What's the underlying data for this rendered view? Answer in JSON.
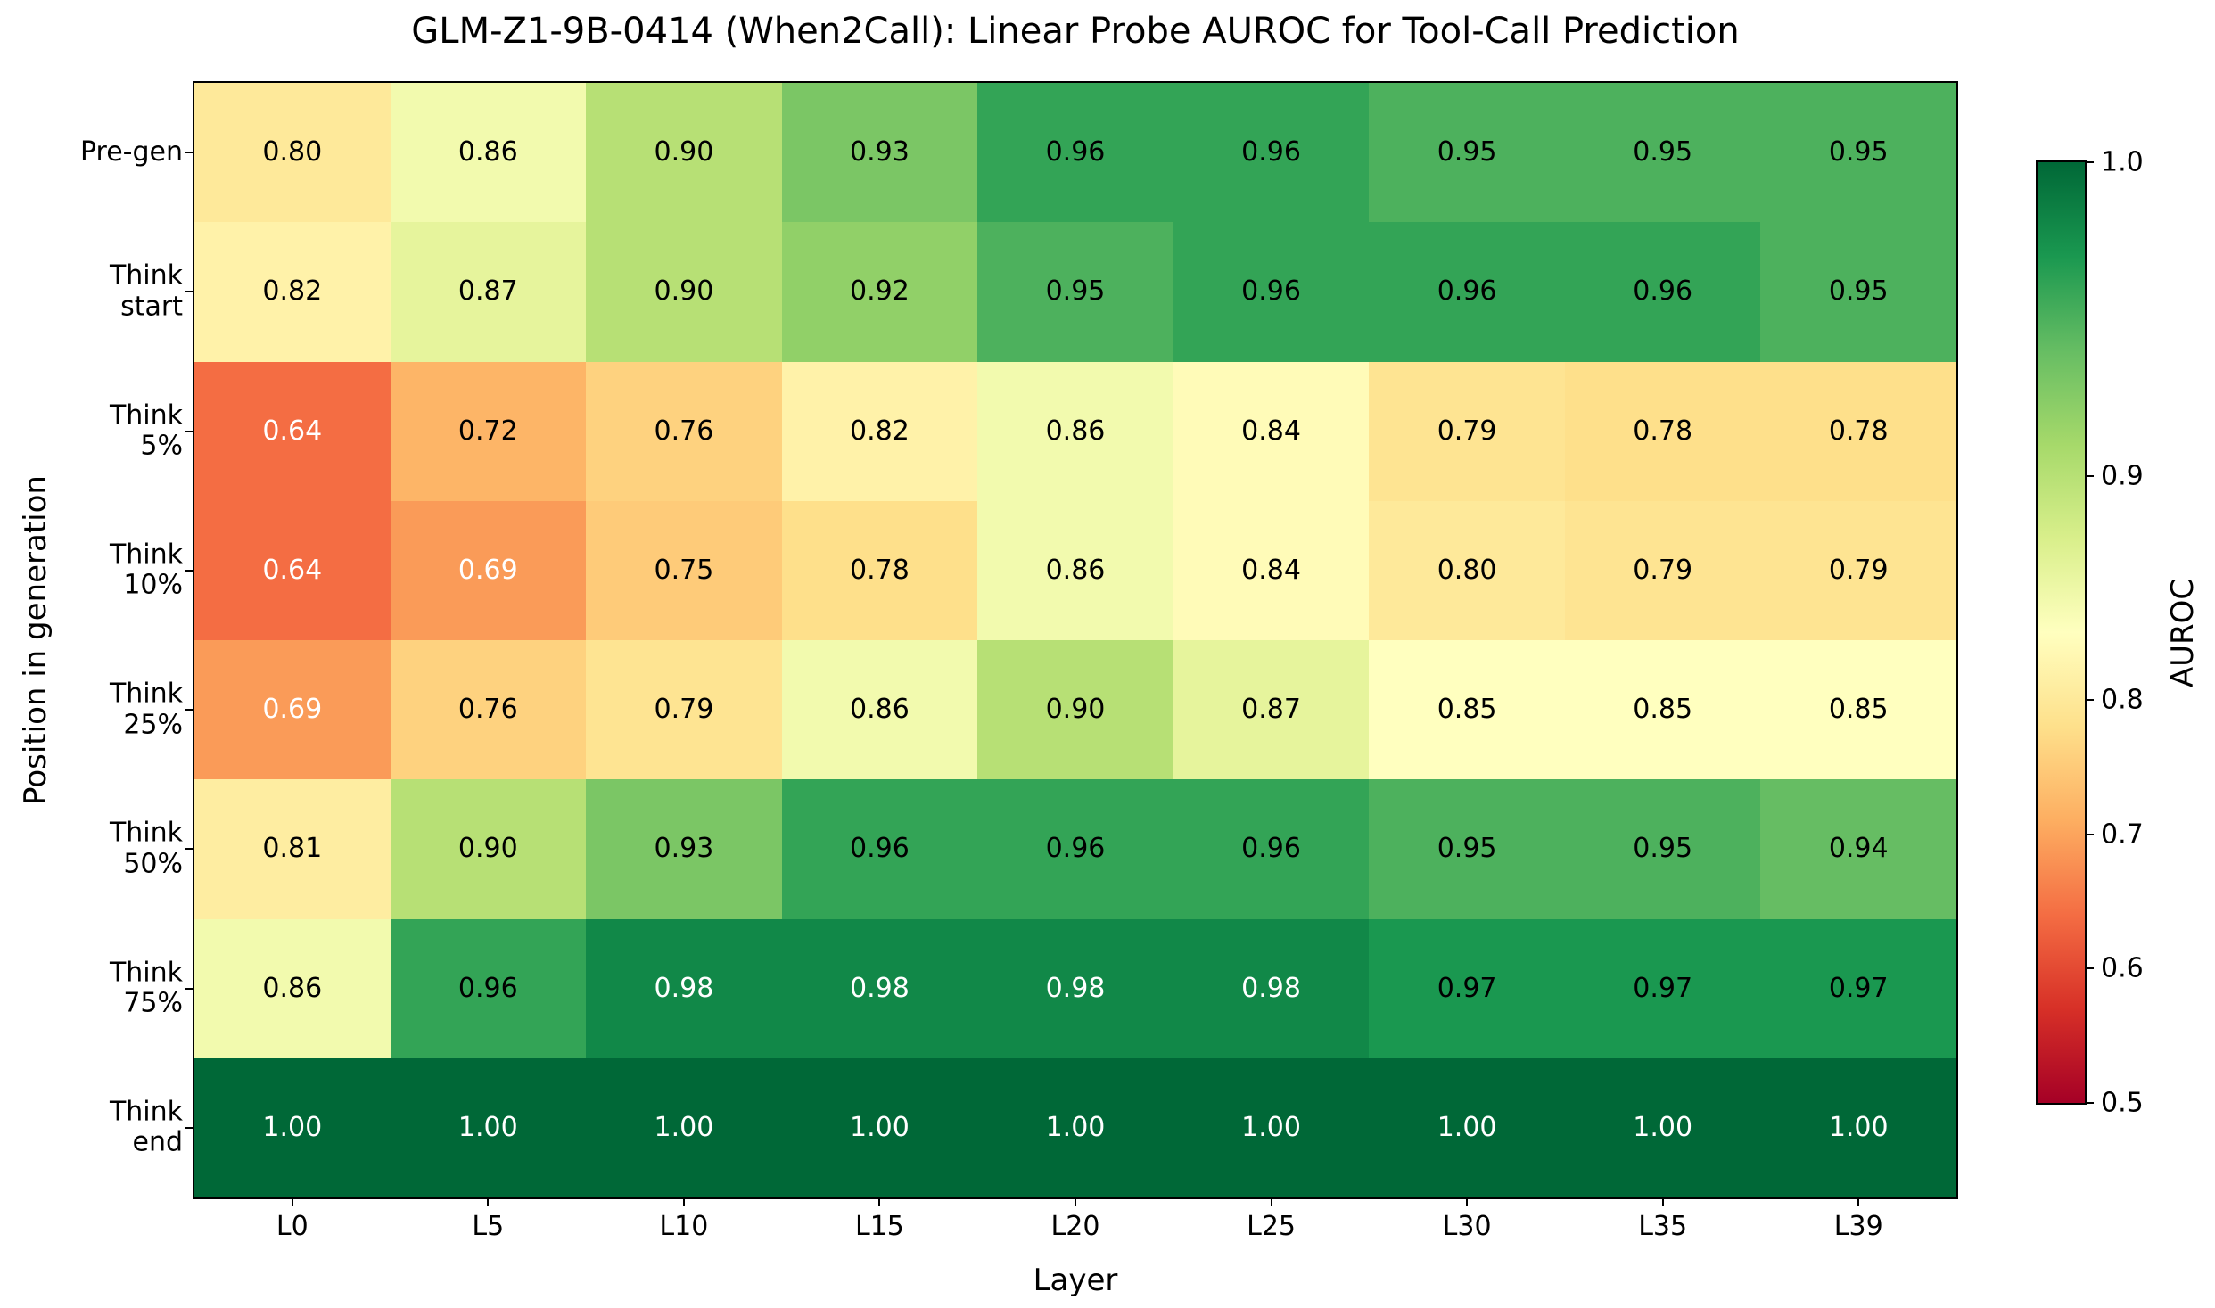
{
  "title": "GLM-Z1-9B-0414 (When2Call): Linear Probe AUROC for Tool-Call Prediction",
  "chart_data": {
    "type": "heatmap",
    "title": "GLM-Z1-9B-0414 (When2Call): Linear Probe AUROC for Tool-Call Prediction",
    "xlabel": "Layer",
    "ylabel": "Position in generation",
    "x_labels": [
      "L0",
      "L5",
      "L10",
      "L15",
      "L20",
      "L25",
      "L30",
      "L35",
      "L39"
    ],
    "y_labels": [
      "Pre-gen",
      "Think\nstart",
      "Think\n5%",
      "Think\n10%",
      "Think\n25%",
      "Think\n50%",
      "Think\n75%",
      "Think\nend"
    ],
    "values": [
      [
        0.8,
        0.86,
        0.9,
        0.93,
        0.96,
        0.96,
        0.95,
        0.95,
        0.95
      ],
      [
        0.82,
        0.87,
        0.9,
        0.92,
        0.95,
        0.96,
        0.96,
        0.96,
        0.95
      ],
      [
        0.64,
        0.72,
        0.76,
        0.82,
        0.86,
        0.84,
        0.79,
        0.78,
        0.78
      ],
      [
        0.64,
        0.69,
        0.75,
        0.78,
        0.86,
        0.84,
        0.8,
        0.79,
        0.79
      ],
      [
        0.69,
        0.76,
        0.79,
        0.86,
        0.9,
        0.87,
        0.85,
        0.85,
        0.85
      ],
      [
        0.81,
        0.9,
        0.93,
        0.96,
        0.96,
        0.96,
        0.95,
        0.95,
        0.94
      ],
      [
        0.86,
        0.96,
        0.98,
        0.98,
        0.98,
        0.98,
        0.97,
        0.97,
        0.97
      ],
      [
        1.0,
        1.0,
        1.0,
        1.0,
        1.0,
        1.0,
        1.0,
        1.0,
        1.0
      ]
    ],
    "value_format_decimals": 2,
    "grid": false,
    "colorbar": {
      "label": "AUROC",
      "ticks": [
        1.0,
        0.9,
        0.8,
        0.7,
        0.6,
        0.5
      ],
      "vmin": 0.5,
      "vcenter": 0.85,
      "vmax": 1.0
    },
    "colormap": {
      "name": "RdYlGn",
      "anchors": [
        "#a50026",
        "#d73027",
        "#f46d43",
        "#fdae61",
        "#fee08b",
        "#ffffbf",
        "#d9ef8b",
        "#a6d96a",
        "#66bd63",
        "#1a9850",
        "#006837"
      ]
    },
    "annotation_text_colors": {
      "light": "#ffffff",
      "dark": "#000000",
      "white_text_when_norm_below": 0.3,
      "white_text_when_norm_above": 0.9
    }
  }
}
